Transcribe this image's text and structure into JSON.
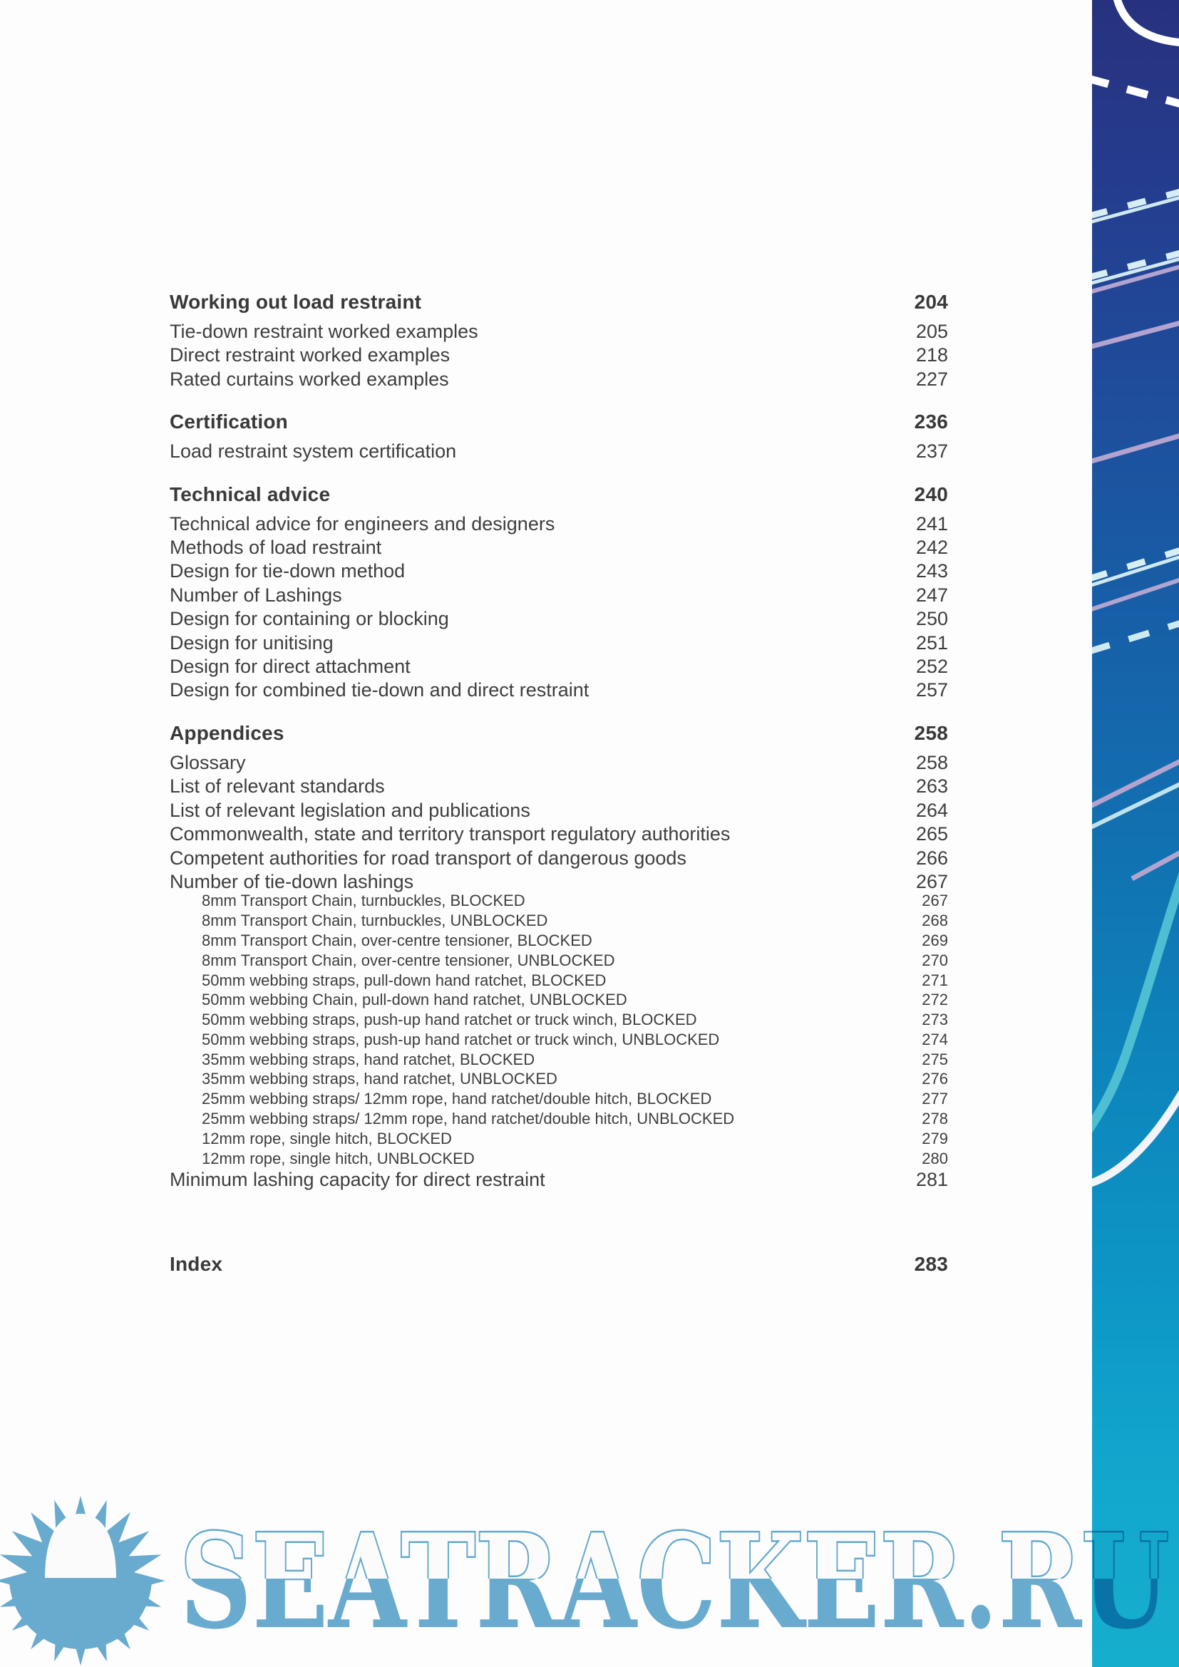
{
  "toc": {
    "sections": [
      {
        "heading": "Working out load restraint",
        "page": "204",
        "entries": [
          {
            "title": "Tie-down restraint worked examples",
            "page": "205"
          },
          {
            "title": "Direct restraint worked examples",
            "page": "218"
          },
          {
            "title": "Rated curtains worked examples",
            "page": "227"
          }
        ]
      },
      {
        "heading": "Certification",
        "page": "236",
        "entries": [
          {
            "title": "Load restraint system certification",
            "page": "237"
          }
        ]
      },
      {
        "heading": "Technical advice",
        "page": "240",
        "entries": [
          {
            "title": "Technical advice for engineers and designers",
            "page": "241"
          },
          {
            "title": "Methods of load restraint",
            "page": "242"
          },
          {
            "title": "Design for tie-down method",
            "page": "243"
          },
          {
            "title": "Number of Lashings",
            "page": "247"
          },
          {
            "title": "Design for containing or blocking",
            "page": "250"
          },
          {
            "title": "Design for unitising",
            "page": "251"
          },
          {
            "title": "Design for direct attachment",
            "page": "252"
          },
          {
            "title": "Design for combined tie-down and direct restraint",
            "page": "257"
          }
        ]
      },
      {
        "heading": "Appendices",
        "page": "258",
        "entries": [
          {
            "title": "Glossary",
            "page": "258"
          },
          {
            "title": "List of relevant standards",
            "page": "263"
          },
          {
            "title": "List of relevant legislation and publications",
            "page": "264"
          },
          {
            "title": "Commonwealth, state and territory transport regulatory authorities",
            "page": "265"
          },
          {
            "title": "Competent authorities for road transport of dangerous goods",
            "page": "266"
          },
          {
            "title": "Number of tie-down lashings",
            "page": "267",
            "children": [
              {
                "title": "8mm Transport Chain, turnbuckles, BLOCKED",
                "page": "267"
              },
              {
                "title": "8mm Transport Chain, turnbuckles, UNBLOCKED",
                "page": "268"
              },
              {
                "title": "8mm Transport Chain, over-centre tensioner, BLOCKED",
                "page": "269"
              },
              {
                "title": "8mm Transport Chain, over-centre tensioner, UNBLOCKED",
                "page": "270"
              },
              {
                "title": "50mm webbing straps, pull-down hand ratchet, BLOCKED",
                "page": "271"
              },
              {
                "title": "50mm webbing Chain, pull-down hand ratchet, UNBLOCKED",
                "page": "272"
              },
              {
                "title": "50mm webbing straps, push-up hand ratchet or truck winch, BLOCKED",
                "page": "273"
              },
              {
                "title": "50mm webbing straps, push-up hand ratchet or truck winch, UNBLOCKED",
                "page": "274"
              },
              {
                "title": "35mm webbing straps, hand ratchet, BLOCKED",
                "page": "275"
              },
              {
                "title": "35mm webbing straps, hand ratchet, UNBLOCKED",
                "page": "276"
              },
              {
                "title": "25mm webbing straps/ 12mm rope, hand ratchet/double hitch, BLOCKED",
                "page": "277"
              },
              {
                "title": "25mm webbing straps/ 12mm rope, hand ratchet/double hitch, UNBLOCKED",
                "page": "278"
              },
              {
                "title": "12mm rope, single hitch, BLOCKED",
                "page": "279"
              },
              {
                "title": "12mm rope, single hitch, UNBLOCKED",
                "page": "280"
              }
            ]
          },
          {
            "title": "Minimum lashing capacity for direct restraint",
            "page": "281"
          }
        ]
      },
      {
        "heading": "Index",
        "page": "283",
        "entries": []
      }
    ]
  },
  "watermark": {
    "text": "SEATRACKER.RU",
    "color": "#64a9cf"
  },
  "colors": {
    "band_top_navy": "#27327e",
    "band_bottom_cyan": "#16aecd",
    "band_line_white": "#ffffff",
    "band_line_pale_cyan": "#cfe9f1",
    "band_line_lavender": "#b2a4cf",
    "band_line_teal": "#55c5d5",
    "toc_text": "#3e3e40"
  }
}
